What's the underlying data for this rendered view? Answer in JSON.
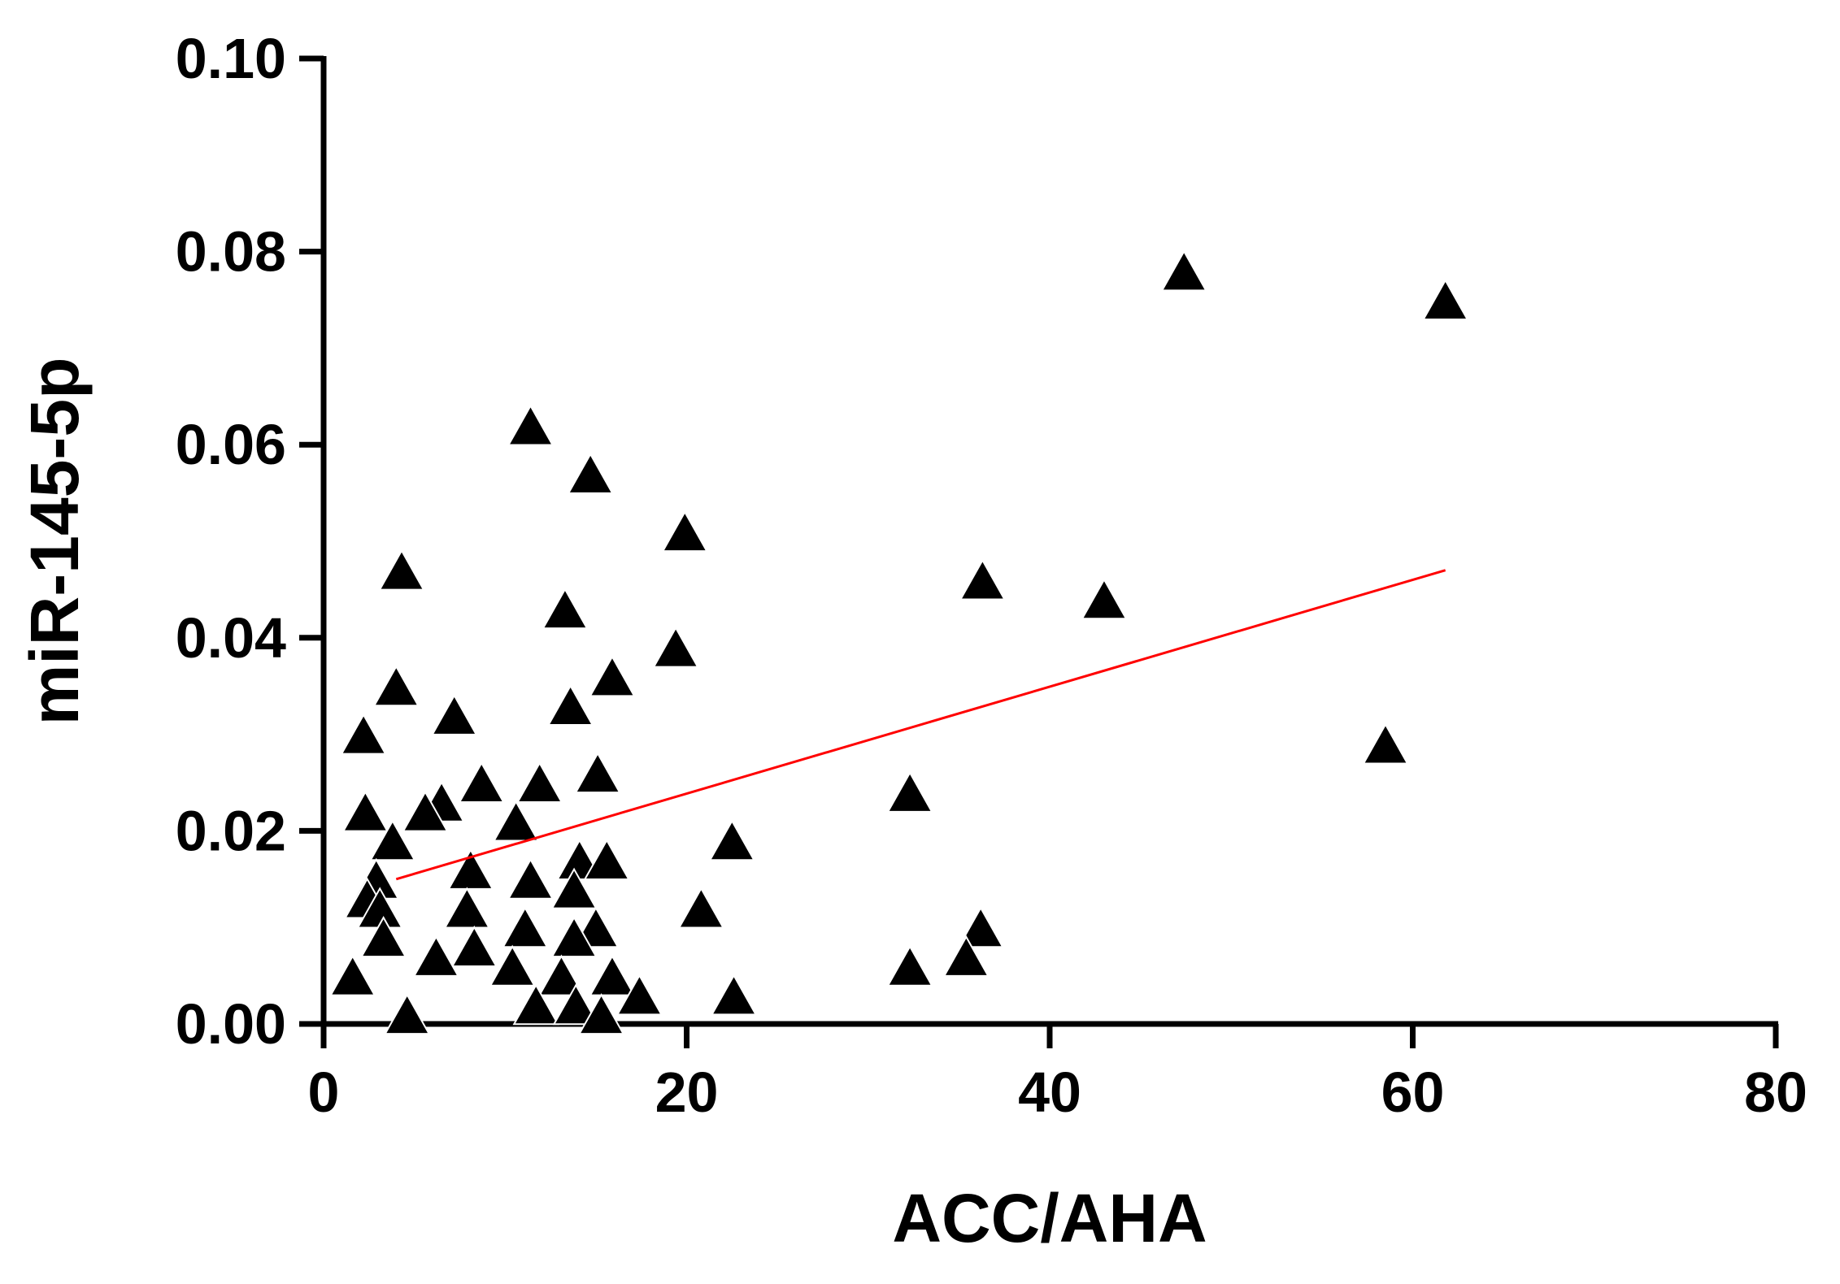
{
  "chart_data": {
    "type": "scatter",
    "x_label": "ACC/AHA",
    "y_label": "miR-145-5p",
    "xlim": [
      0,
      80
    ],
    "xticks": [
      0,
      20,
      40,
      60,
      80
    ],
    "ylim": [
      0,
      0.1
    ],
    "yticks": [
      {
        "value": 0,
        "label": "0.00"
      },
      {
        "value": 0.02,
        "label": "0.02"
      },
      {
        "value": 0.04,
        "label": "0.04"
      },
      {
        "value": 0.06,
        "label": "0.06"
      },
      {
        "value": 0.08,
        "label": "0.08"
      },
      {
        "value": 0.1,
        "label": "0.10"
      }
    ],
    "marker": "triangle",
    "color": "#000000",
    "x": [
      47.4,
      61.8,
      11.4,
      14.7,
      4.3,
      19.9,
      36.3,
      43.0,
      13.3,
      19.4,
      4.0,
      13.6,
      15.9,
      2.2,
      7.2,
      58.5,
      15.1,
      32.3,
      2.3,
      8.7,
      11.9,
      6.5,
      5.6,
      10.6,
      3.8,
      22.5,
      8.1,
      2.9,
      11.4,
      14.1,
      15.6,
      13.8,
      2.4,
      3.1,
      7.9,
      20.8,
      11.1,
      36.2,
      3.3,
      15.0,
      13.8,
      8.3,
      6.2,
      10.4,
      1.6,
      13.1,
      15.9,
      32.3,
      35.4,
      17.4,
      22.6,
      11.7,
      13.9,
      15.3,
      4.6
    ],
    "y": [
      0.078,
      0.075,
      0.062,
      0.057,
      0.047,
      0.051,
      0.046,
      0.044,
      0.043,
      0.039,
      0.035,
      0.033,
      0.036,
      0.03,
      0.032,
      0.029,
      0.026,
      0.024,
      0.022,
      0.025,
      0.025,
      0.023,
      0.022,
      0.021,
      0.019,
      0.019,
      0.016,
      0.015,
      0.015,
      0.017,
      0.017,
      0.014,
      0.013,
      0.012,
      0.012,
      0.012,
      0.01,
      0.01,
      0.009,
      0.01,
      0.009,
      0.008,
      0.007,
      0.006,
      0.005,
      0.005,
      0.005,
      0.006,
      0.007,
      0.003,
      0.003,
      0.002,
      0.002,
      0.001,
      0.001
    ],
    "trendline": {
      "color": "#ff0000",
      "x": [
        4.0,
        61.8
      ],
      "y": [
        0.015,
        0.047
      ]
    }
  }
}
